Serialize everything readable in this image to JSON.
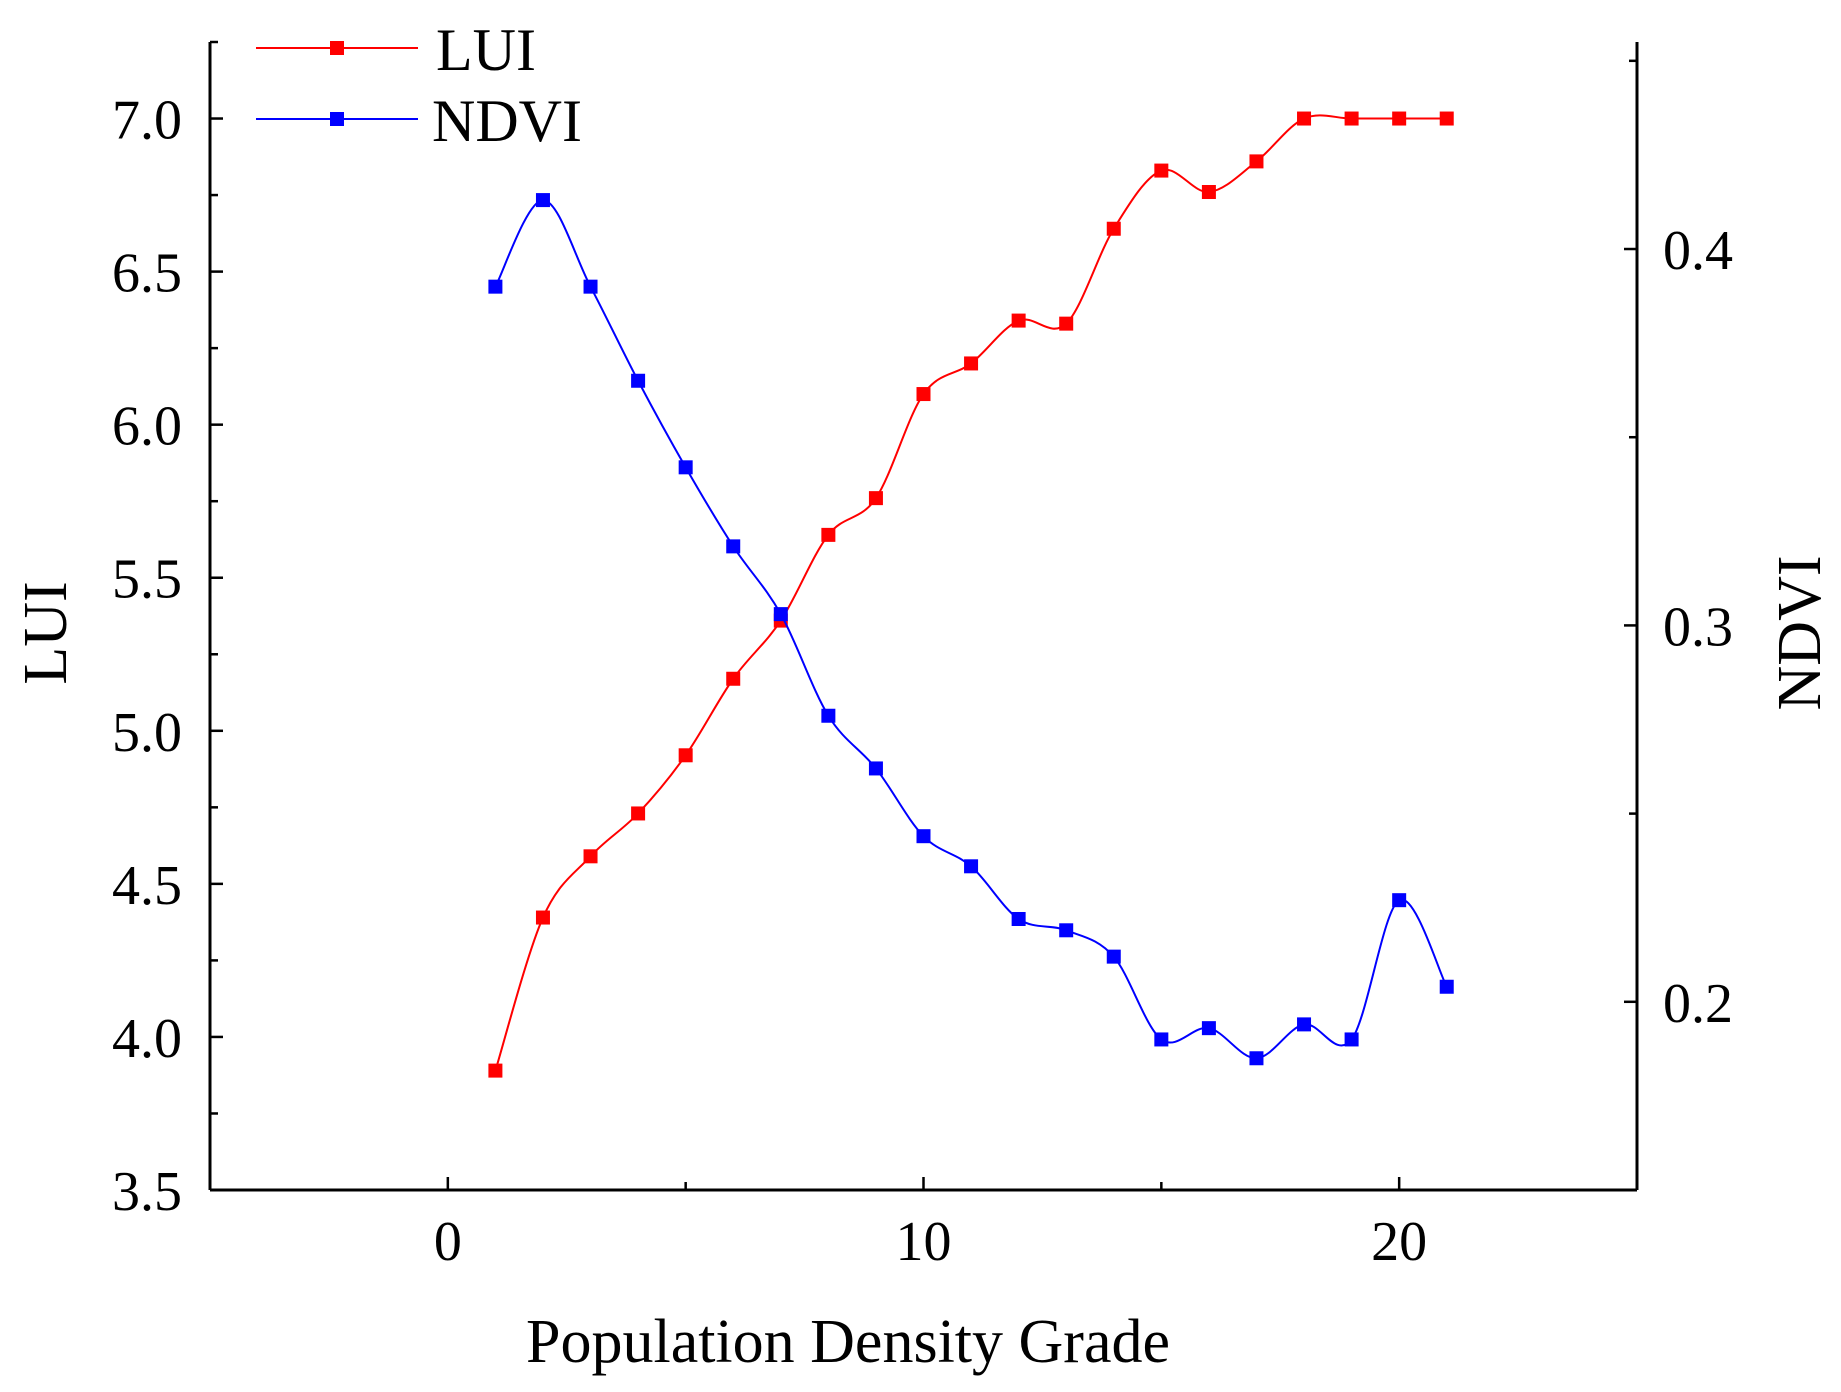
{
  "chart_data": {
    "type": "line",
    "xlabel": "Population Density Grade",
    "ylabel": "LUI",
    "y2label": "NDVI",
    "xlim": [
      -5,
      25
    ],
    "ylim": [
      3.5,
      7.25
    ],
    "y2lim": [
      0.15,
      0.455
    ],
    "x_ticks": [
      0,
      10,
      20
    ],
    "y_ticks": [
      3.5,
      4.0,
      4.5,
      5.0,
      5.5,
      6.0,
      6.5,
      7.0
    ],
    "y2_ticks": [
      0.2,
      0.3,
      0.4
    ],
    "x_tick_labels": [
      "0",
      "10",
      "20"
    ],
    "y_tick_labels": [
      "3.5",
      "4.0",
      "4.5",
      "5.0",
      "5.5",
      "6.0",
      "6.5",
      "7.0"
    ],
    "y2_tick_labels": [
      "0.2",
      "0.3",
      "0.4"
    ],
    "legend_position": "top-left",
    "grid": false,
    "x": [
      1,
      2,
      3,
      4,
      5,
      6,
      7,
      8,
      9,
      10,
      11,
      12,
      13,
      14,
      15,
      16,
      17,
      18,
      19,
      20,
      21
    ],
    "series": [
      {
        "name": "LUI",
        "axis": "left",
        "color": "#ff0000",
        "values": [
          3.89,
          4.39,
          4.59,
          4.73,
          4.92,
          5.17,
          5.36,
          5.64,
          5.76,
          6.1,
          6.2,
          6.34,
          6.33,
          6.64,
          6.83,
          6.76,
          6.86,
          7.0,
          7.0,
          7.0,
          7.0
        ]
      },
      {
        "name": "NDVI",
        "axis": "right",
        "color": "#0000ff",
        "values": [
          0.39,
          0.413,
          0.39,
          0.365,
          0.342,
          0.321,
          0.303,
          0.276,
          0.262,
          0.244,
          0.236,
          0.222,
          0.219,
          0.212,
          0.19,
          0.193,
          0.185,
          0.194,
          0.19,
          0.227,
          0.204
        ]
      }
    ]
  }
}
